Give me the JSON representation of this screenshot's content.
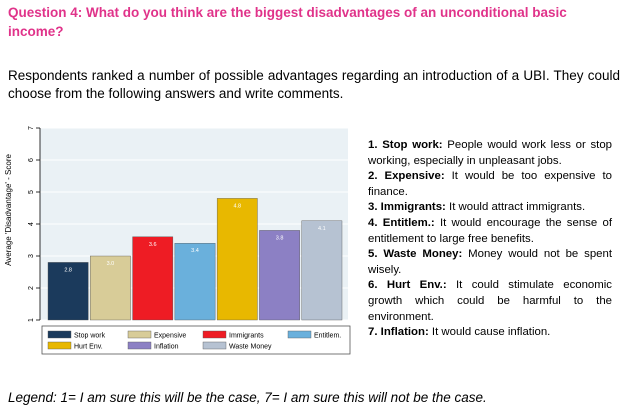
{
  "question": "Question 4: What do you think are the biggest disadvantages of an unconditional basic income?",
  "intro": "Respondents ranked a number of possible advantages regarding an introduction of a UBI. They could choose from the following answers and write comments.",
  "answers": [
    {
      "label": "1. Stop work:",
      "text": " People would work less or stop working, especially in unpleasant jobs."
    },
    {
      "label": "2. Expensive:",
      "text": " It would be too expensive to finance."
    },
    {
      "label": "3. Immigrants:",
      "text": " It would attract immigrants."
    },
    {
      "label": "4. Entitlem.:",
      "text": " It would encourage the sense of entitlement to large free benefits."
    },
    {
      "label": "5. Waste Money:",
      "text": " Money would not be spent wisely."
    },
    {
      "label": "6. Hurt Env.:",
      "text": " It could stimulate economic growth which could be harmful to the environment."
    },
    {
      "label": "7. Inflation:",
      "text": " It would cause inflation."
    }
  ],
  "legend_note": "Legend: 1= I am sure this will be the case, 7= I am sure this will not be the case.",
  "chart_data": {
    "type": "bar",
    "ylabel": "Average 'Disadvantage' - Score",
    "ylim": [
      1,
      7
    ],
    "yticks": [
      1,
      2,
      3,
      4,
      5,
      6,
      7
    ],
    "grid": true,
    "legend_position": "bottom",
    "categories": [
      "Stop work",
      "Expensive",
      "Immigrants",
      "Entitlem.",
      "Hurt Env.",
      "Inflation",
      "Waste Money"
    ],
    "values": [
      2.8,
      3.0,
      3.6,
      3.4,
      4.8,
      3.8,
      4.1
    ],
    "value_labels": [
      "2.8",
      "3.0",
      "3.6",
      "3.4",
      "4.8",
      "3.8",
      "4.1"
    ],
    "colors": [
      "#1b3a5c",
      "#d8cc98",
      "#ee1c24",
      "#6ab0dc",
      "#e8b800",
      "#8c80c4",
      "#b6c2d2"
    ],
    "legend_items": [
      {
        "name": "Stop work",
        "color": "#1b3a5c"
      },
      {
        "name": "Expensive",
        "color": "#d8cc98"
      },
      {
        "name": "Immigrants",
        "color": "#ee1c24"
      },
      {
        "name": "Entitlem.",
        "color": "#6ab0dc"
      },
      {
        "name": "Hurt Env.",
        "color": "#e8b800"
      },
      {
        "name": "Inflation",
        "color": "#8c80c4"
      },
      {
        "name": "Waste Money",
        "color": "#b6c2d2"
      }
    ]
  }
}
